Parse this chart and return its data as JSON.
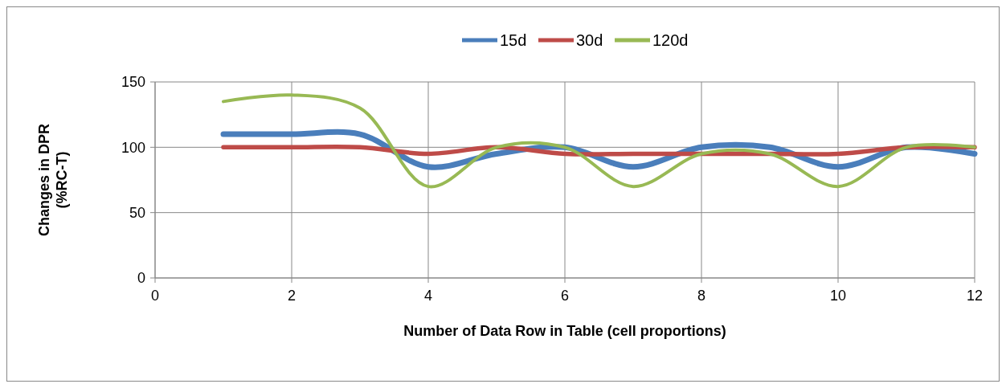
{
  "chart_data": {
    "type": "line",
    "xlabel": "Number of Data Row in Table  (cell proportions)",
    "ylabel": "Changes in DPR (%RC-T)",
    "x": [
      1,
      2,
      3,
      4,
      5,
      6,
      7,
      8,
      9,
      10,
      11,
      12
    ],
    "series": [
      {
        "name": "15d",
        "color": "#4a7ebb",
        "values": [
          110,
          110,
          110,
          85,
          95,
          100,
          85,
          100,
          100,
          85,
          100,
          95
        ]
      },
      {
        "name": "30d",
        "color": "#be4b48",
        "values": [
          100,
          100,
          100,
          95,
          100,
          95,
          95,
          95,
          95,
          95,
          100,
          100
        ]
      },
      {
        "name": "120d",
        "color": "#98b954",
        "values": [
          135,
          140,
          130,
          70,
          100,
          100,
          70,
          95,
          95,
          70,
          100,
          100
        ]
      }
    ],
    "xlim": [
      0,
      12
    ],
    "xticks": [
      0,
      2,
      4,
      6,
      8,
      10,
      12
    ],
    "ylim": [
      0,
      150
    ],
    "yticks": [
      0,
      50,
      100,
      150
    ],
    "grid": true,
    "legend": "top",
    "marker": "none",
    "line_style": "solid"
  }
}
